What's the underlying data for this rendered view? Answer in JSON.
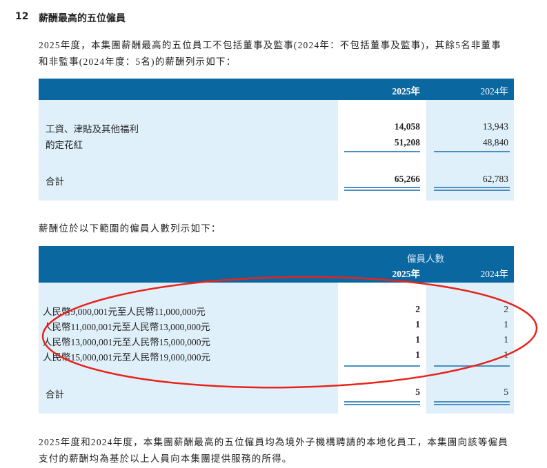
{
  "section": {
    "number": "12",
    "title": "薪酬最高的五位僱員"
  },
  "intro": [
    "2025年度，本集團薪酬最高的五位員工不包括董事及監事(2024年：不包括董事及監事)，其餘5名非董事",
    "和非監事(2024年度：5名)的薪酬列示如下："
  ],
  "table1": {
    "headers": [
      "2025年",
      "2024年"
    ],
    "rows": [
      {
        "label": "工資、津貼及其他福利",
        "v2025": "14,058",
        "v2024": "13,943"
      },
      {
        "label": "酌定花紅",
        "v2025": "51,208",
        "v2024": "48,840"
      }
    ],
    "total": {
      "label": "合計",
      "v2025": "65,266",
      "v2024": "62,783"
    }
  },
  "mid_text": "薪酬位於以下範圍的僱員人數列示如下：",
  "table2": {
    "group_header": "僱員人數",
    "headers": [
      "2025年",
      "2024年"
    ],
    "rows": [
      {
        "label": "人民幣9,000,001元至人民幣11,000,000元",
        "v2025": "2",
        "v2024": "2"
      },
      {
        "label": "人民幣11,000,001元至人民幣13,000,000元",
        "v2025": "1",
        "v2024": "1"
      },
      {
        "label": "人民幣13,000,001元至人民幣15,000,000元",
        "v2025": "1",
        "v2024": "1"
      },
      {
        "label": "人民幣15,000,001元至人民幣19,000,000元",
        "v2025": "1",
        "v2024": "1"
      }
    ],
    "total": {
      "label": "合計",
      "v2025": "5",
      "v2024": "5"
    }
  },
  "outro": [
    "2025年度和2024年度，本集團薪酬最高的五位僱員均為境外子機構聘請的本地化員工，本集團向該等僱員",
    "支付的薪酬均為基於以上人員向本集團提供服務的所得。"
  ],
  "colors": {
    "header": "#0a67a0",
    "shade": "#dff0fa",
    "annotation": "#e8231c"
  }
}
